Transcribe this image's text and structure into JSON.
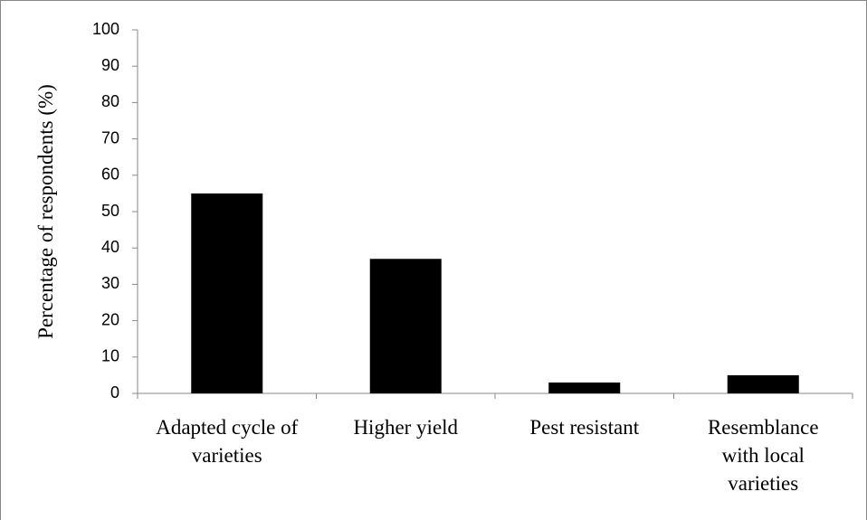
{
  "chart_data": {
    "type": "bar",
    "y_label": "Percentage of respondents (%)",
    "categories": [
      "Adapted cycle of varieties",
      "Higher yield",
      "Pest resistant",
      "Resemblance with local varieties"
    ],
    "values": [
      55,
      37,
      3,
      5
    ],
    "color": "#000000",
    "ylim": [
      0,
      100
    ],
    "yticks": [
      0,
      10,
      20,
      30,
      40,
      50,
      60,
      70,
      80,
      90,
      100
    ],
    "grid": false
  }
}
